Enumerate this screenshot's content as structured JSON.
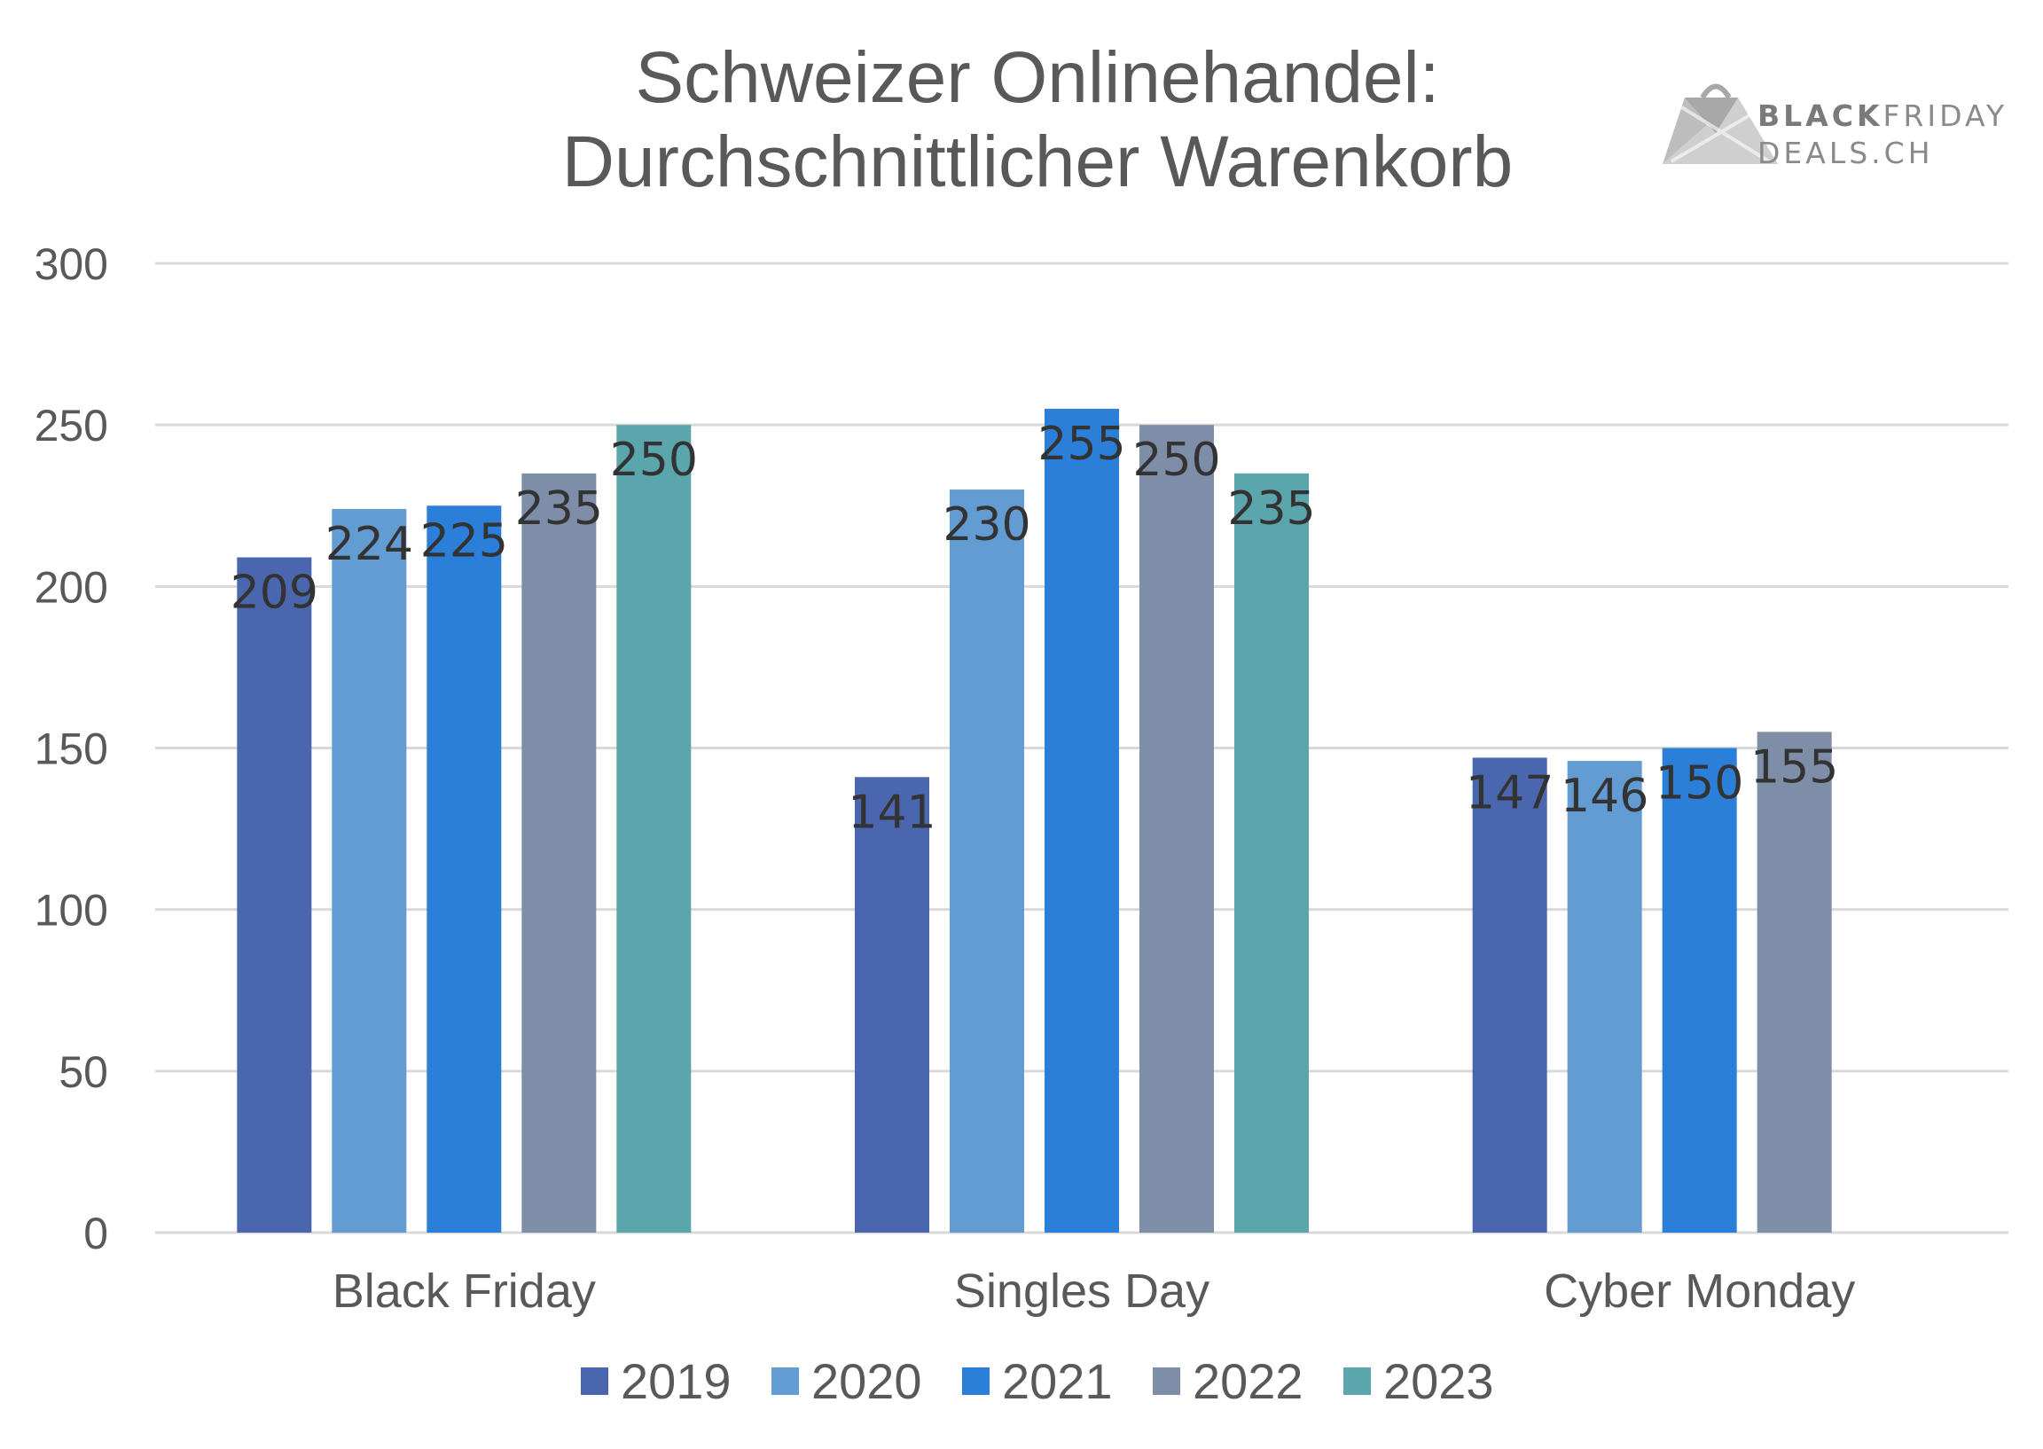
{
  "chart_data": {
    "type": "bar",
    "title": [
      "Schweizer Onlinehandel:",
      "Durchschnittlicher Warenkorb"
    ],
    "categories": [
      "Black Friday",
      "Singles Day",
      "Cyber Monday"
    ],
    "series": [
      {
        "name": "2019",
        "color": "#4a66ae",
        "values": [
          209,
          141,
          147
        ]
      },
      {
        "name": "2020",
        "color": "#629cd2",
        "values": [
          224,
          230,
          146
        ]
      },
      {
        "name": "2021",
        "color": "#2b7fd8",
        "values": [
          225,
          255,
          150
        ]
      },
      {
        "name": "2022",
        "color": "#7f8ea8",
        "values": [
          235,
          250,
          155
        ]
      },
      {
        "name": "2023",
        "color": "#5ba5ad",
        "values": [
          250,
          235,
          null
        ]
      }
    ],
    "ylim": [
      0,
      300
    ],
    "yticks": [
      0,
      50,
      100,
      150,
      200,
      250,
      300
    ],
    "grid": true,
    "legend": "bottom",
    "data_labels": true
  },
  "logo": {
    "line1_bold": "BLACK",
    "line1_rest": "FRIDAY",
    "line2": "DEALS.CH"
  }
}
